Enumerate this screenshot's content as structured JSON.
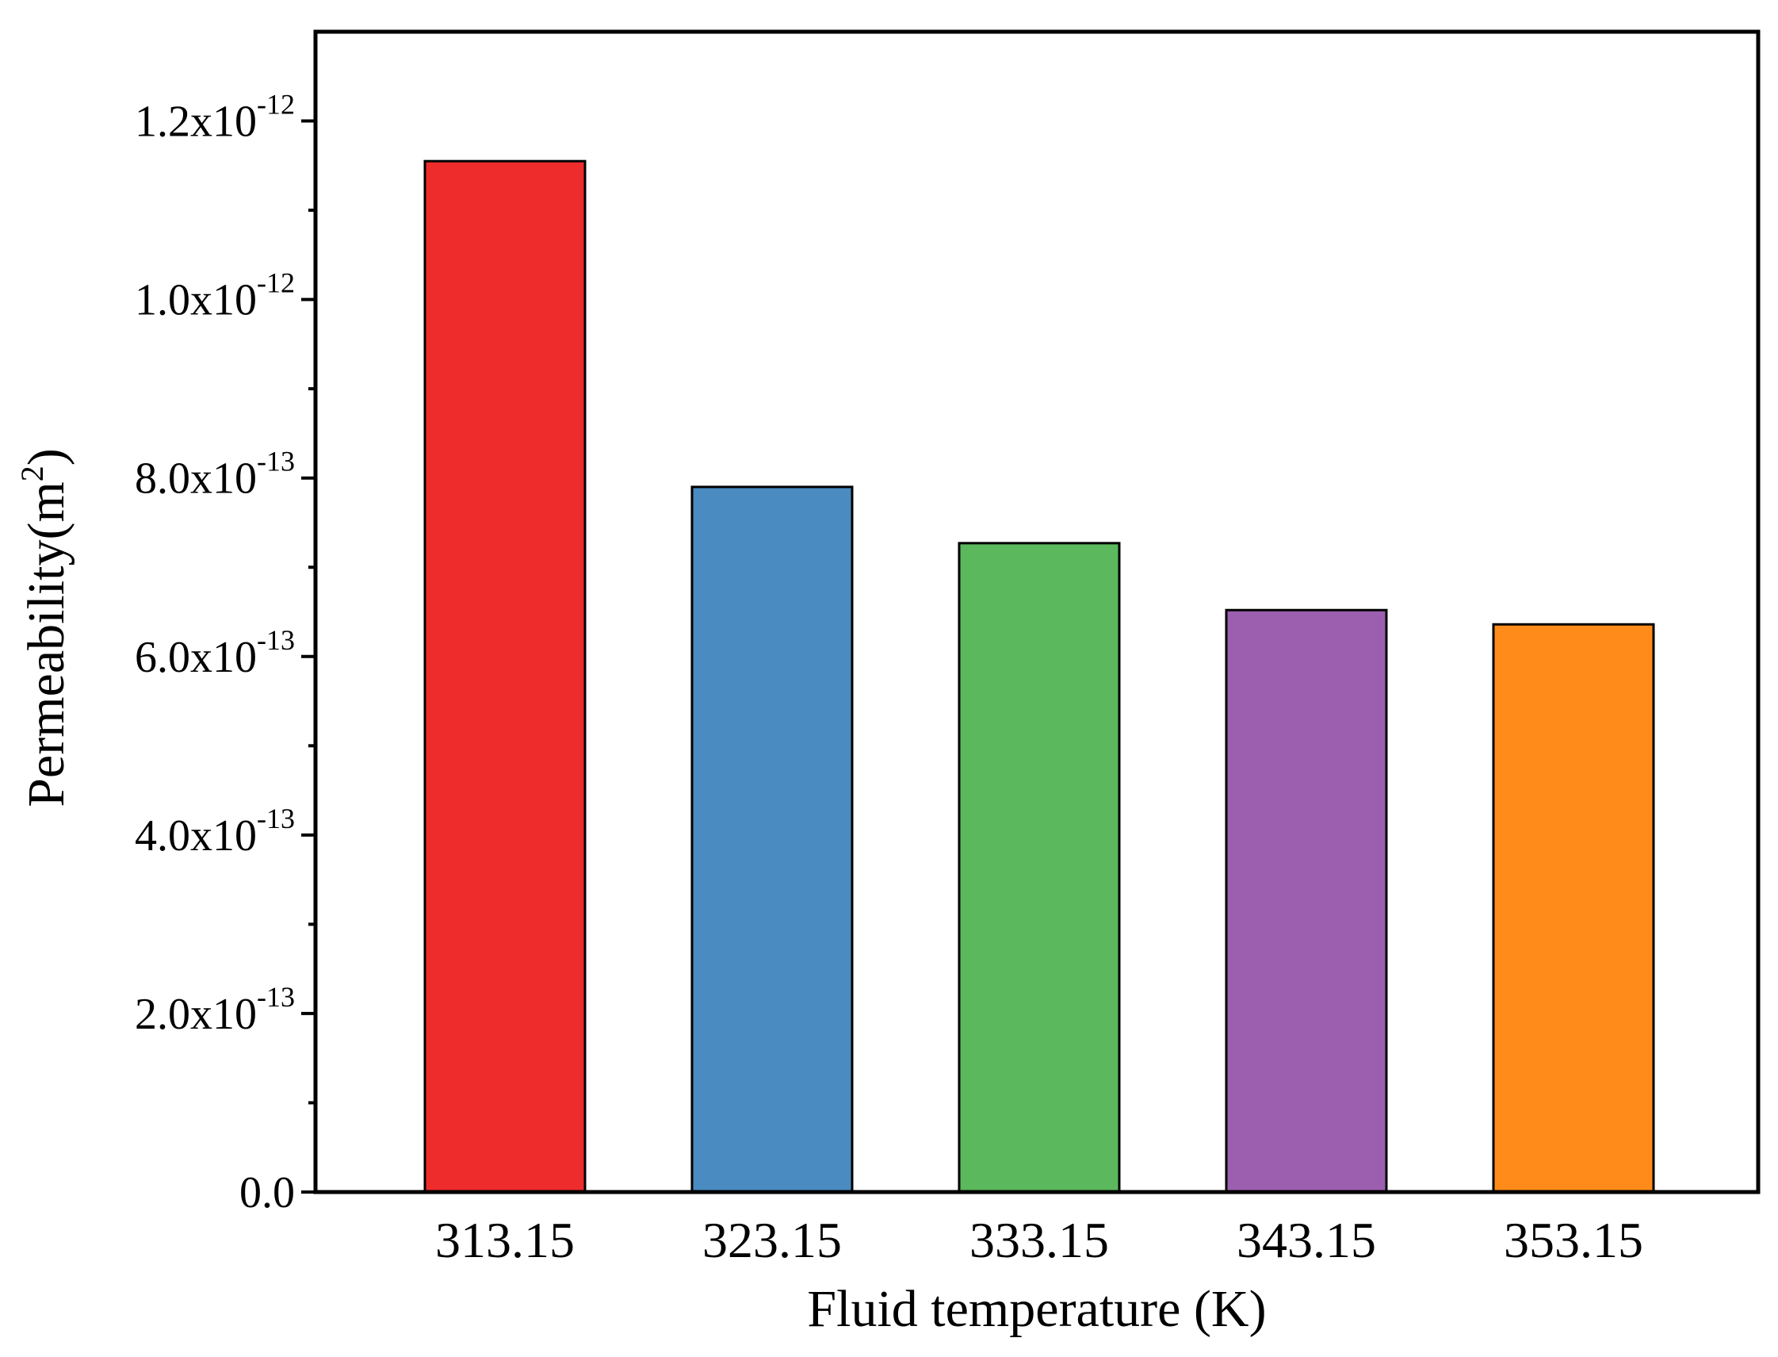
{
  "chart_data": {
    "type": "bar",
    "xlabel": "Fluid temperature (K)",
    "ylabel": {
      "main": "Permeability(m",
      "sup": "2",
      "close": ")"
    },
    "categories": [
      "313.15",
      "323.15",
      "333.15",
      "343.15",
      "353.15"
    ],
    "values": [
      1.155e-12,
      7.9e-13,
      7.27e-13,
      6.52e-13,
      6.36e-13
    ],
    "colors": [
      "#ee2c2c",
      "#4a8bc2",
      "#5cb85c",
      "#9c5fb0",
      "#ff8c1a"
    ],
    "ylim": [
      0,
      1.3e-12
    ],
    "yticks": [
      {
        "value": 0,
        "mantissa": "0.0",
        "exponent": ""
      },
      {
        "value": 2e-13,
        "mantissa": "2.0x10",
        "exponent": "-13"
      },
      {
        "value": 4e-13,
        "mantissa": "4.0x10",
        "exponent": "-13"
      },
      {
        "value": 6e-13,
        "mantissa": "6.0x10",
        "exponent": "-13"
      },
      {
        "value": 8e-13,
        "mantissa": "8.0x10",
        "exponent": "-13"
      },
      {
        "value": 1e-12,
        "mantissa": "1.0x10",
        "exponent": "-12"
      },
      {
        "value": 1.2e-12,
        "mantissa": "1.2x10",
        "exponent": "-12"
      }
    ],
    "minor_tick_step": 1e-13,
    "grid": false,
    "legend": "none"
  }
}
